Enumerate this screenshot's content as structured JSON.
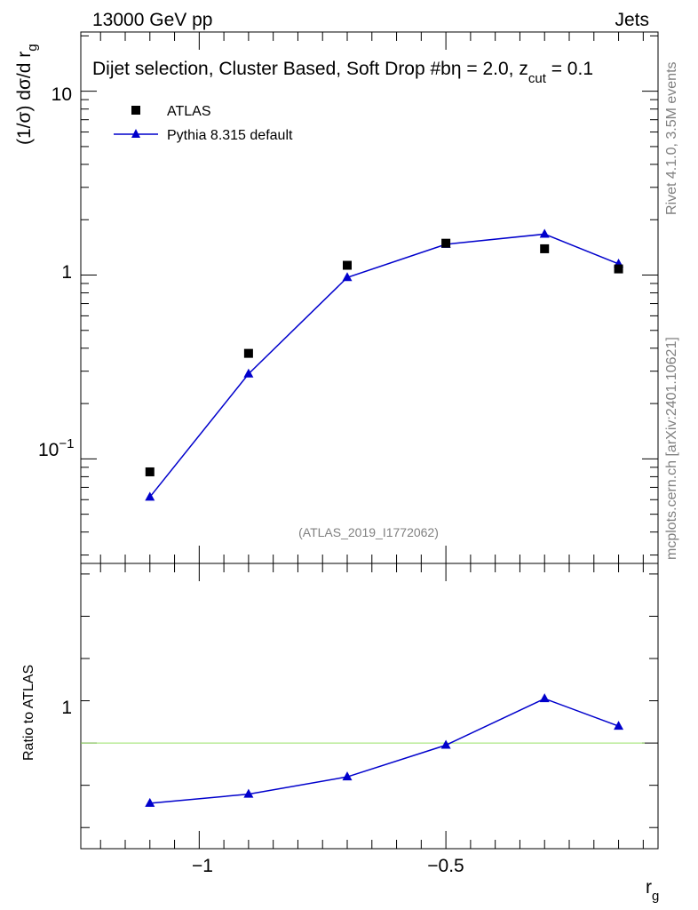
{
  "header": {
    "left": "13000 GeV pp",
    "right": "Jets"
  },
  "plot_title": {
    "main": "Dijet selection, Cluster Based, Soft Drop #b",
    "eta_part": "η = 2.0, z",
    "sub": "cut",
    "tail": " = 0.1"
  },
  "side_labels": {
    "rivet": "Rivet 4.1.0,  3.5M events",
    "mcplots": "mcplots.cern.ch [arXiv:2401.10621]"
  },
  "analysis_id": "(ATLAS_2019_I1772062)",
  "colors": {
    "mc": "#0000cc",
    "data": "#000000",
    "ref_line": "#99e066",
    "watermark": "#808080"
  },
  "chart_data": [
    {
      "type": "scatter",
      "panel": "main",
      "ylabel_main": "(1/σ) dσ/d r",
      "ylabel_sub": "g",
      "xlim": [
        -1.24,
        -0.07
      ],
      "ylim": [
        0.027,
        21
      ],
      "yscale": "log",
      "legend_position": "top-left",
      "y_tick_labels": [
        "10",
        "1"
      ],
      "y_tick_minus": {
        "base": "10",
        "exp": "−1"
      },
      "series": [
        {
          "name": "ATLAS",
          "marker": "square",
          "x": [
            -1.1,
            -0.9,
            -0.7,
            -0.5,
            -0.3,
            -0.15
          ],
          "y": [
            0.085,
            0.375,
            1.13,
            1.49,
            1.39,
            1.08
          ]
        },
        {
          "name": "Pythia 8.315 default",
          "marker": "triangle",
          "line": true,
          "x": [
            -1.1,
            -0.9,
            -0.7,
            -0.5,
            -0.3,
            -0.15
          ],
          "y": [
            0.062,
            0.29,
            0.97,
            1.47,
            1.67,
            1.15
          ]
        }
      ]
    },
    {
      "type": "line",
      "panel": "ratio",
      "ylabel": "Ratio to ATLAS",
      "xlabel": "r",
      "xlabel_sub": "g",
      "xlim": [
        -1.24,
        -0.07
      ],
      "ylim": [
        0.5,
        1.85
      ],
      "x_tick_labels": [
        "−1",
        "−0.5"
      ],
      "y_tick_labels": [
        "1"
      ],
      "reference": 1,
      "series": [
        {
          "name": "Pythia 8.315 default",
          "marker": "triangle",
          "x": [
            -1.1,
            -0.9,
            -0.7,
            -0.5,
            -0.3,
            -0.15
          ],
          "y": [
            0.715,
            0.758,
            0.84,
            0.99,
            1.21,
            1.08
          ]
        }
      ]
    }
  ]
}
